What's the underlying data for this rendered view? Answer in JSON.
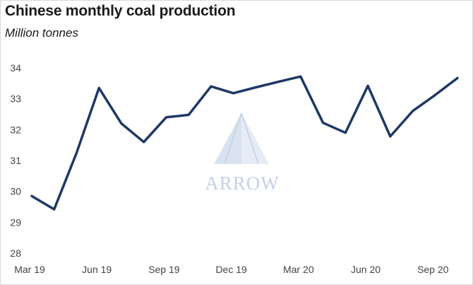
{
  "chart_data": {
    "type": "line",
    "title": "Chinese monthly coal production",
    "subtitle": "Million tonnes",
    "xlabel": "",
    "ylabel": "",
    "ylim": [
      28,
      34
    ],
    "yticks": [
      28,
      29,
      30,
      31,
      32,
      33,
      34
    ],
    "x": [
      "Mar 19",
      "Apr 19",
      "May 19",
      "Jun 19",
      "Jul 19",
      "Aug 19",
      "Sep 19",
      "Oct 19",
      "Nov 19",
      "Dec 19",
      "Jan 20",
      "Feb 20",
      "Mar 20",
      "Apr 20",
      "May 20",
      "Jun 20",
      "Jul 20",
      "Aug 20",
      "Sep 20",
      "Oct 20"
    ],
    "xtick_labels": [
      "Mar 19",
      "Jun 19",
      "Sep 19",
      "Dec 19",
      "Mar 20",
      "Jun 20",
      "Sep 20"
    ],
    "series": [
      {
        "values": [
          29.85,
          29.42,
          31.25,
          33.35,
          32.2,
          31.6,
          32.4,
          32.48,
          33.4,
          33.18,
          33.37,
          33.55,
          33.72,
          32.22,
          31.9,
          33.42,
          31.78,
          32.6,
          33.12,
          33.67
        ],
        "color": "#1f3864"
      }
    ],
    "grid": false,
    "legend": "none"
  },
  "watermark": {
    "text": "ARROW",
    "color": "#c5d0e2"
  }
}
